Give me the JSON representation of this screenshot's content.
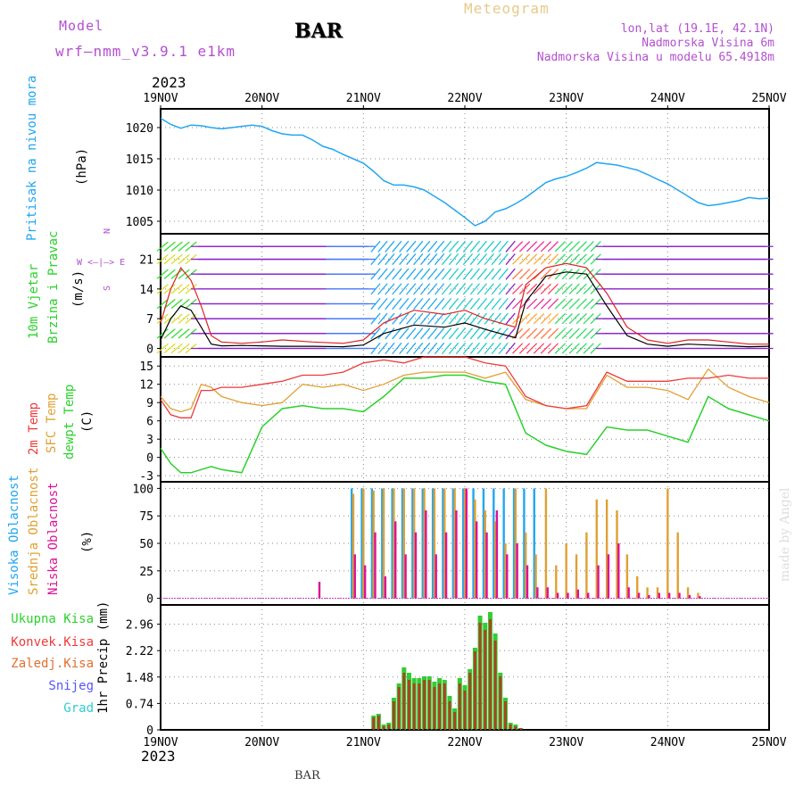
{
  "header": {
    "model_label": "Model",
    "model_name": "wrf–nmm_v3.9.1  e1km",
    "station": "BAR",
    "title": "Meteogram",
    "coords": "lon,lat (19.1E, 42.1N)",
    "altitude": "Nadmorska Visina 6m",
    "model_altitude": "Nadmorska Visina u modelu 65.4918m",
    "year": "2023",
    "footer_station": "BAR",
    "watermark": "made by Angel"
  },
  "colors": {
    "magenta": "#b44fd0",
    "cyan": "#22a6f0",
    "yellow_title": "#e8c98a",
    "red": "#ee3a3a",
    "orange": "#e0a033",
    "green": "#2bd12b",
    "blue": "#5555ff",
    "teal": "#33cccc",
    "purple": "#8a2be2"
  },
  "chart_data": [
    {
      "type": "line",
      "panel": "pressure",
      "ylabel_lines": [
        "Pritisak na nivou mora",
        "(hPa)"
      ],
      "yticks": [
        1005,
        1010,
        1015,
        1020
      ],
      "ylim": [
        1003,
        1023
      ],
      "x": [
        0,
        0.1,
        0.2,
        0.3,
        0.4,
        0.5,
        0.6,
        0.7,
        0.8,
        0.9,
        1.0,
        1.1,
        1.2,
        1.3,
        1.4,
        1.5,
        1.6,
        1.7,
        1.8,
        1.9,
        2.0,
        2.1,
        2.2,
        2.3,
        2.4,
        2.5,
        2.6,
        2.7,
        2.8,
        2.9,
        3.0,
        3.1,
        3.2,
        3.3,
        3.4,
        3.5,
        3.6,
        3.7,
        3.8,
        3.9,
        4.0,
        4.1,
        4.2,
        4.3,
        4.4,
        4.5,
        4.6,
        4.7,
        4.8,
        4.9,
        5.0,
        5.1,
        5.2,
        5.3,
        5.4,
        5.5,
        5.6,
        5.7,
        5.8,
        5.9,
        6.0
      ],
      "series": [
        {
          "values": [
            1021.5,
            1020.5,
            1019.9,
            1020.4,
            1020.3,
            1020.0,
            1019.8,
            1020.0,
            1020.2,
            1020.4,
            1020.2,
            1019.5,
            1019.0,
            1018.8,
            1018.8,
            1018.0,
            1017.0,
            1016.5,
            1015.7,
            1015.0,
            1014.3,
            1013.0,
            1011.5,
            1010.8,
            1010.8,
            1010.5,
            1010.0,
            1009.0,
            1008.0,
            1006.8,
            1005.6,
            1004.3,
            1005.0,
            1006.5,
            1007.0,
            1007.8,
            1008.8,
            1010.0,
            1011.2,
            1011.8,
            1012.2,
            1012.8,
            1013.5,
            1014.4,
            1014.2,
            1014.0,
            1013.6,
            1013.2,
            1012.5,
            1011.7,
            1011.0,
            1010.0,
            1009.0,
            1008.0,
            1007.5,
            1007.7,
            1008.0,
            1008.3,
            1008.8,
            1008.6,
            1008.7
          ]
        }
      ]
    },
    {
      "type": "line",
      "panel": "wind",
      "ylabel_lines": [
        "10m Vjetar",
        "Brzina i Pravac",
        "(m/s)"
      ],
      "direction_hint": [
        "N",
        "W <–|–> E",
        "S"
      ],
      "yticks": [
        0,
        7,
        14,
        21
      ],
      "ylim": [
        -2,
        27
      ],
      "x": [
        0,
        0.1,
        0.2,
        0.3,
        0.4,
        0.5,
        0.6,
        0.8,
        1.0,
        1.2,
        1.5,
        1.8,
        2.0,
        2.2,
        2.5,
        2.8,
        3.0,
        3.2,
        3.5,
        3.6,
        3.8,
        4.0,
        4.2,
        4.4,
        4.6,
        4.8,
        5.0,
        5.2,
        5.4,
        5.6,
        5.8,
        6.0
      ],
      "series": [
        {
          "name": "mean",
          "values": [
            2,
            7,
            10,
            9,
            5,
            1,
            0.6,
            0.7,
            0.6,
            0.5,
            0.5,
            0.4,
            0.8,
            3.5,
            5.5,
            5.0,
            6.0,
            4.5,
            2.5,
            11,
            17,
            18,
            17.5,
            10,
            3,
            1,
            0.5,
            1,
            0.8,
            0.6,
            0.4,
            0.5
          ]
        },
        {
          "name": "gust",
          "values": [
            6,
            14,
            19,
            16,
            10,
            3,
            1.5,
            1.2,
            1.5,
            2,
            1.5,
            1.2,
            2,
            6,
            9,
            8,
            9,
            7,
            5,
            15,
            19,
            20,
            19,
            13,
            5,
            2,
            1.2,
            2,
            2,
            1.5,
            1,
            1
          ]
        }
      ]
    },
    {
      "type": "line",
      "panel": "temperature",
      "ylabel_lines": [
        "2m Temp",
        "SFC Temp",
        "dewpt Temp",
        "(C)"
      ],
      "yticks": [
        -3,
        0,
        3,
        6,
        9,
        12,
        15
      ],
      "ylim": [
        -4,
        16.5
      ],
      "x": [
        0,
        0.1,
        0.2,
        0.3,
        0.4,
        0.5,
        0.6,
        0.8,
        1.0,
        1.2,
        1.4,
        1.6,
        1.8,
        2.0,
        2.2,
        2.4,
        2.6,
        2.8,
        3.0,
        3.2,
        3.4,
        3.6,
        3.8,
        4.0,
        4.2,
        4.4,
        4.6,
        4.8,
        5.0,
        5.2,
        5.4,
        5.6,
        5.8,
        6.0
      ],
      "series": [
        {
          "name": "2m Temp",
          "values": [
            9.5,
            7,
            6.5,
            6.5,
            11,
            11,
            11.5,
            11.5,
            12,
            12.5,
            13.5,
            13.5,
            14,
            15.5,
            16,
            15.5,
            16.5,
            16.5,
            16.5,
            15.5,
            15,
            10,
            8.5,
            8,
            8.5,
            14,
            12.5,
            12.5,
            12.5,
            13,
            13,
            13.5,
            13,
            13
          ]
        },
        {
          "name": "SFC Temp",
          "values": [
            10,
            8,
            7.5,
            8,
            12,
            11.5,
            10,
            9,
            8.5,
            9,
            12,
            11.5,
            12,
            11,
            12,
            13.5,
            14,
            14,
            14,
            13,
            14,
            9.5,
            8.5,
            8,
            8,
            13.5,
            11.5,
            11.5,
            11,
            9.5,
            14.5,
            11.5,
            10,
            9
          ]
        },
        {
          "name": "dewpt Temp",
          "values": [
            1.5,
            -1,
            -2.5,
            -2.5,
            -2,
            -1.5,
            -2,
            -2.5,
            5,
            8,
            8.5,
            8,
            8,
            7.5,
            10,
            13,
            13,
            13.5,
            13.5,
            12.5,
            12,
            4,
            2,
            1,
            0.5,
            5,
            4.5,
            4.5,
            3.5,
            2.5,
            10,
            8,
            7,
            6
          ]
        }
      ]
    },
    {
      "type": "bar",
      "panel": "clouds",
      "ylabel_lines": [
        "Visoka Oblacnost",
        "Srednja Oblacnost",
        "Niska Oblacnost",
        "(%)"
      ],
      "yticks": [
        0,
        25,
        50,
        75,
        100
      ],
      "ylim": [
        -6,
        106
      ],
      "x": [
        1.55,
        1.9,
        2.0,
        2.1,
        2.2,
        2.3,
        2.4,
        2.5,
        2.6,
        2.7,
        2.8,
        2.9,
        3.0,
        3.1,
        3.2,
        3.3,
        3.4,
        3.5,
        3.6,
        3.7,
        3.8,
        3.9,
        4.0,
        4.1,
        4.2,
        4.3,
        4.4,
        4.5,
        4.6,
        4.7,
        4.8,
        4.9,
        5.0,
        5.1,
        5.2,
        5.3,
        5.4
      ],
      "series": [
        {
          "name": "Visoka Oblacnost",
          "values": [
            0,
            100,
            100,
            100,
            100,
            100,
            100,
            100,
            100,
            100,
            100,
            100,
            100,
            100,
            100,
            100,
            100,
            100,
            100,
            100,
            0,
            0,
            0,
            0,
            0,
            0,
            0,
            0,
            0,
            0,
            0,
            0,
            0,
            0,
            0,
            0,
            0
          ]
        },
        {
          "name": "Srednja Oblacnost",
          "values": [
            0,
            95,
            100,
            98,
            100,
            100,
            100,
            100,
            100,
            100,
            100,
            100,
            100,
            90,
            80,
            70,
            50,
            100,
            60,
            40,
            100,
            30,
            50,
            40,
            60,
            90,
            90,
            80,
            40,
            20,
            10,
            10,
            100,
            60,
            10,
            5,
            0
          ]
        },
        {
          "name": "Niska Oblacnost",
          "values": [
            15,
            40,
            30,
            60,
            20,
            70,
            40,
            60,
            80,
            40,
            60,
            80,
            100,
            70,
            60,
            80,
            40,
            50,
            30,
            10,
            10,
            5,
            5,
            8,
            5,
            30,
            40,
            50,
            10,
            5,
            3,
            5,
            5,
            5,
            3,
            2,
            0
          ]
        }
      ]
    },
    {
      "type": "bar",
      "panel": "precip",
      "ylabel_lines": [
        "1hr Precip (mm)"
      ],
      "legend": [
        "Ukupna Kisa",
        "Konvek.Kisa",
        "Zaledj.Kisa",
        "Snijeg",
        "Grad"
      ],
      "yticks": [
        0,
        0.74,
        1.48,
        2.22,
        2.96
      ],
      "ylim": [
        0,
        3.5
      ],
      "x": [
        2.1,
        2.15,
        2.2,
        2.25,
        2.3,
        2.35,
        2.4,
        2.45,
        2.5,
        2.55,
        2.6,
        2.65,
        2.7,
        2.75,
        2.8,
        2.85,
        2.9,
        2.95,
        3.0,
        3.05,
        3.1,
        3.15,
        3.2,
        3.25,
        3.3,
        3.35,
        3.4,
        3.45,
        3.5,
        3.55
      ],
      "series": [
        {
          "name": "Ukupna Kisa",
          "values": [
            0.4,
            0.45,
            0.15,
            0.2,
            0.9,
            1.3,
            1.75,
            1.6,
            1.45,
            1.45,
            1.5,
            1.5,
            1.35,
            1.45,
            1.4,
            0.95,
            0.6,
            1.45,
            1.25,
            1.7,
            2.3,
            3.2,
            3.0,
            3.3,
            2.7,
            1.6,
            0.9,
            0.2,
            0.15,
            0.05
          ]
        },
        {
          "name": "Konvek.Kisa",
          "values": [
            0.35,
            0.4,
            0.1,
            0.15,
            0.8,
            1.2,
            1.6,
            1.4,
            1.3,
            1.3,
            1.4,
            1.4,
            1.2,
            1.3,
            1.3,
            0.8,
            0.5,
            1.3,
            1.1,
            1.6,
            2.2,
            3.0,
            2.8,
            3.1,
            2.5,
            1.5,
            0.8,
            0.15,
            0.1,
            0.05
          ]
        }
      ]
    }
  ],
  "time_axis": {
    "labels": [
      "19NOV",
      "20NOV",
      "21NOV",
      "22NOV",
      "23NOV",
      "24NOV",
      "25NOV"
    ]
  }
}
